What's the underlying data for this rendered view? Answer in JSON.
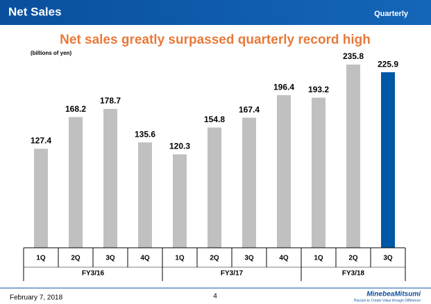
{
  "header": {
    "title": "Net Sales",
    "tag": "Quarterly"
  },
  "chart_data": {
    "type": "bar",
    "title": "Net sales greatly surpassed quarterly record high",
    "unit_label": "(billions of yen)",
    "groups": [
      {
        "label": "FY3/16",
        "categories": [
          "1Q",
          "2Q",
          "3Q",
          "4Q"
        ]
      },
      {
        "label": "FY3/17",
        "categories": [
          "1Q",
          "2Q",
          "3Q",
          "4Q"
        ]
      },
      {
        "label": "FY3/18",
        "categories": [
          "1Q",
          "2Q",
          "3Q"
        ]
      }
    ],
    "values": [
      127.4,
      168.2,
      178.7,
      135.6,
      120.3,
      154.8,
      167.4,
      196.4,
      193.2,
      235.8,
      225.9
    ],
    "colors": [
      "#c0c0c0",
      "#c0c0c0",
      "#c0c0c0",
      "#c0c0c0",
      "#c0c0c0",
      "#c0c0c0",
      "#c0c0c0",
      "#c0c0c0",
      "#c0c0c0",
      "#c0c0c0",
      "#0057a6"
    ]
  },
  "footer": {
    "date": "February 7, 2018",
    "page": "4",
    "brand": "MinebeaMitsumi",
    "slogan": "Passion to Create Value through Difference"
  }
}
